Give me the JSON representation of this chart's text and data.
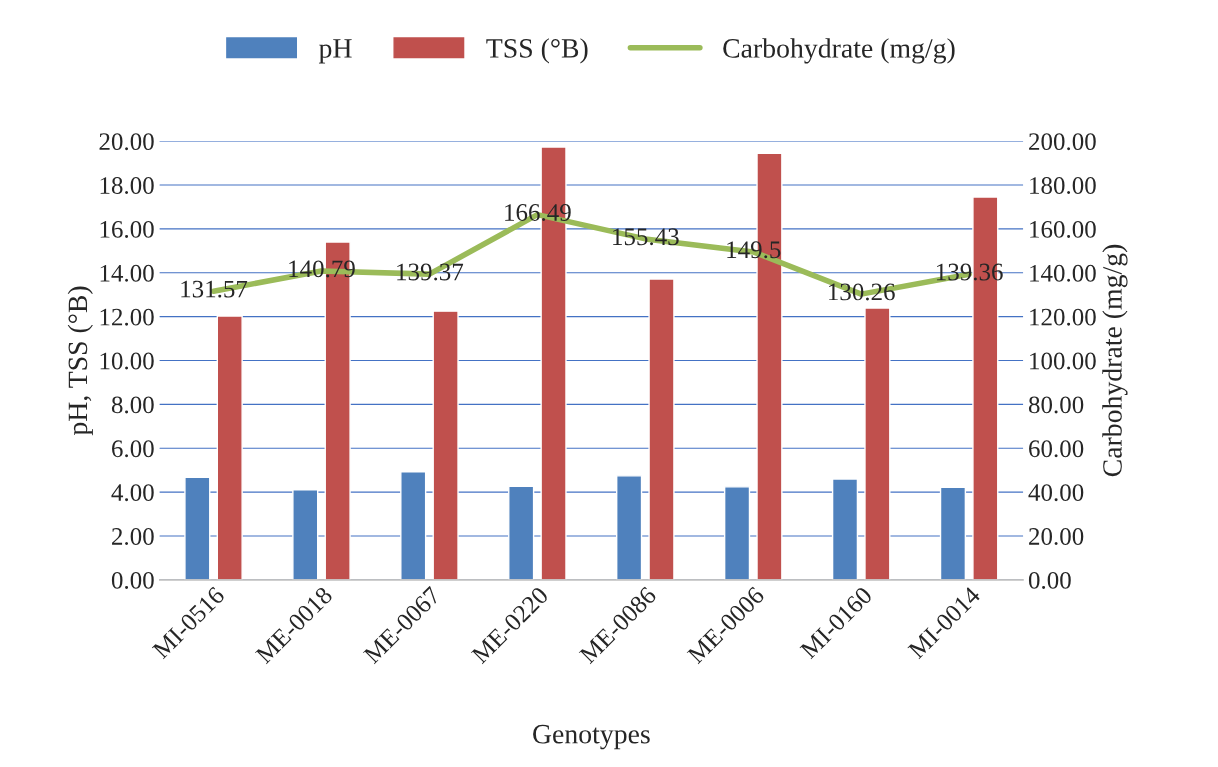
{
  "chart_data": {
    "type": "bar",
    "xlabel": "Genotypes",
    "ylabel": "pH, TSS (°B)",
    "y2label": "Carbohydrate (mg/g)",
    "categories": [
      "MI-0516",
      "ME-0018",
      "ME-0067",
      "ME-0220",
      "ME-0086",
      "ME-0006",
      "MI-0160",
      "MI-0014"
    ],
    "series": [
      {
        "name": "pH",
        "color": "#4f81bd",
        "values": [
          4.68,
          4.1,
          4.92,
          4.27,
          4.74,
          4.24,
          4.6,
          4.22
        ]
      },
      {
        "name": "TSS (°B)",
        "color": "#c0504d",
        "values": [
          12.03,
          15.4,
          12.25,
          19.73,
          13.71,
          19.45,
          12.39,
          17.45
        ]
      },
      {
        "name": "Carbohydrate (mg/g)",
        "type": "line",
        "axis": "y2",
        "color": "#9bbb59",
        "values": [
          131.57,
          140.79,
          139.37,
          166.49,
          155.43,
          149.5,
          130.26,
          139.36
        ],
        "value_labels": [
          "131.57",
          "140.79",
          "139.37",
          "166.49",
          "155.43",
          "149.5",
          "130.26",
          "139.36"
        ]
      }
    ],
    "ylim": [
      0,
      20
    ],
    "yticks": [
      {
        "value": 0,
        "label": "0.00"
      },
      {
        "value": 2,
        "label": "2.00"
      },
      {
        "value": 4,
        "label": "4.00"
      },
      {
        "value": 6,
        "label": "6.00"
      },
      {
        "value": 8,
        "label": "8.00"
      },
      {
        "value": 10,
        "label": "10.00"
      },
      {
        "value": 12,
        "label": "12.00"
      },
      {
        "value": 14,
        "label": "14.00"
      },
      {
        "value": 16,
        "label": "16.00"
      },
      {
        "value": 18,
        "label": "18.00"
      },
      {
        "value": 20,
        "label": "20.00"
      }
    ],
    "y2lim": [
      0,
      200
    ],
    "y2ticks": [
      {
        "value": 0,
        "label": "0.00"
      },
      {
        "value": 20,
        "label": "20.00"
      },
      {
        "value": 40,
        "label": "40.00"
      },
      {
        "value": 60,
        "label": "60.00"
      },
      {
        "value": 80,
        "label": "80.00"
      },
      {
        "value": 100,
        "label": "100.00"
      },
      {
        "value": 120,
        "label": "120.00"
      },
      {
        "value": 140,
        "label": "140.00"
      },
      {
        "value": 160,
        "label": "160.00"
      },
      {
        "value": 180,
        "label": "180.00"
      },
      {
        "value": 200,
        "label": "200.00"
      }
    ],
    "grid": "y",
    "legend": "top",
    "marker": "none",
    "line_style": "solid"
  }
}
